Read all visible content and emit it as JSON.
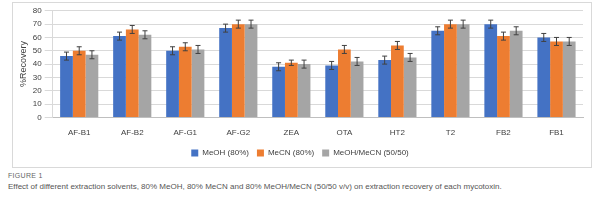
{
  "chart_data": {
    "type": "bar",
    "categories": [
      "AF-B1",
      "AF-B2",
      "AF-G1",
      "AF-G2",
      "ZEA",
      "OTA",
      "HT2",
      "T2",
      "FB2",
      "FB1"
    ],
    "series": [
      {
        "name": "MeOH (80%)",
        "color": "#4472c4",
        "values": [
          46,
          61,
          50,
          67,
          38,
          39,
          43,
          65,
          70,
          60
        ],
        "errors": [
          3,
          3,
          3,
          3,
          3,
          3,
          3,
          3,
          3,
          3
        ]
      },
      {
        "name": "MeCN (80%)",
        "color": "#ed7d31",
        "values": [
          50,
          66,
          53,
          70,
          41,
          51,
          54,
          70,
          61,
          57
        ],
        "errors": [
          3,
          3,
          3,
          3,
          2,
          3,
          3,
          3,
          3,
          3
        ]
      },
      {
        "name": "MeOH/MeCN (50/50)",
        "color": "#a5a5a5",
        "values": [
          47,
          62,
          51,
          70,
          40,
          42,
          45,
          70,
          65,
          57
        ],
        "errors": [
          3,
          3,
          3,
          3,
          3,
          3,
          3,
          3,
          3,
          3
        ]
      }
    ],
    "y_label": "%Recovery",
    "ylim": [
      0,
      80
    ],
    "yticks": [
      0,
      10,
      20,
      30,
      40,
      50,
      60,
      70,
      80
    ],
    "grid": true,
    "legend": "bottom"
  },
  "caption": {
    "label": "FIGURE 1",
    "text": "Effect of different extraction solvents, 80% MeOH, 80% MeCN and 80% MeOH/MeCN (50/50 v/v) on extraction recovery of each mycotoxin."
  }
}
